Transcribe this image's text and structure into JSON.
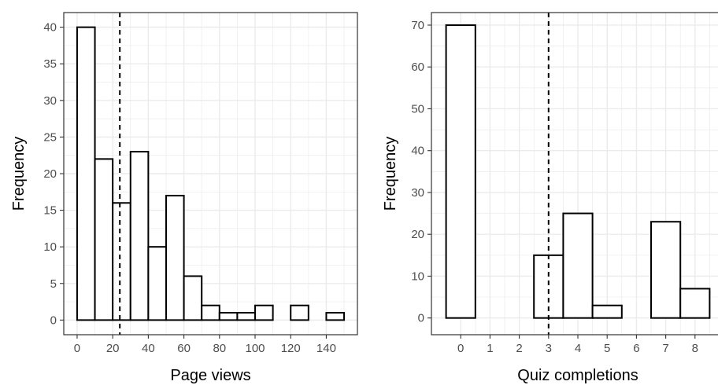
{
  "chart_data": [
    {
      "type": "bar",
      "subtype": "histogram",
      "xlabel": "Page views",
      "ylabel": "Frequency",
      "xlim": [
        -7.5,
        157.5
      ],
      "ylim": [
        -2,
        42
      ],
      "xticks": [
        0,
        20,
        40,
        60,
        80,
        100,
        120,
        140
      ],
      "yticks": [
        0,
        5,
        10,
        15,
        20,
        25,
        30,
        35,
        40
      ],
      "bin_width": 10,
      "bins": [
        {
          "start": 0,
          "end": 10,
          "count": 40
        },
        {
          "start": 10,
          "end": 20,
          "count": 22
        },
        {
          "start": 20,
          "end": 30,
          "count": 16
        },
        {
          "start": 30,
          "end": 40,
          "count": 23
        },
        {
          "start": 40,
          "end": 50,
          "count": 10
        },
        {
          "start": 50,
          "end": 60,
          "count": 17
        },
        {
          "start": 60,
          "end": 70,
          "count": 6
        },
        {
          "start": 70,
          "end": 80,
          "count": 2
        },
        {
          "start": 80,
          "end": 90,
          "count": 1
        },
        {
          "start": 90,
          "end": 100,
          "count": 1
        },
        {
          "start": 100,
          "end": 110,
          "count": 2
        },
        {
          "start": 110,
          "end": 120,
          "count": 0
        },
        {
          "start": 120,
          "end": 130,
          "count": 2
        },
        {
          "start": 130,
          "end": 140,
          "count": 0
        },
        {
          "start": 140,
          "end": 150,
          "count": 1
        }
      ],
      "reference_line": {
        "x": 24,
        "style": "dashed"
      },
      "grid": true
    },
    {
      "type": "bar",
      "subtype": "histogram",
      "xlabel": "Quiz completions",
      "ylabel": "Frequency",
      "xlim": [
        -1,
        9
      ],
      "ylim": [
        -4,
        73
      ],
      "xticks": [
        0,
        1,
        2,
        3,
        4,
        5,
        6,
        7,
        8
      ],
      "yticks": [
        0,
        10,
        20,
        30,
        40,
        50,
        60,
        70
      ],
      "bin_width": 1,
      "bins": [
        {
          "start": -0.5,
          "end": 0.5,
          "count": 70
        },
        {
          "start": 0.5,
          "end": 1.5,
          "count": 0
        },
        {
          "start": 1.5,
          "end": 2.5,
          "count": 0
        },
        {
          "start": 2.5,
          "end": 3.5,
          "count": 15
        },
        {
          "start": 3.5,
          "end": 4.5,
          "count": 25
        },
        {
          "start": 4.5,
          "end": 5.5,
          "count": 3
        },
        {
          "start": 5.5,
          "end": 6.5,
          "count": 0
        },
        {
          "start": 6.5,
          "end": 7.5,
          "count": 23
        },
        {
          "start": 7.5,
          "end": 8.5,
          "count": 7
        }
      ],
      "reference_line": {
        "x": 3,
        "style": "dashed"
      },
      "grid": true
    }
  ]
}
